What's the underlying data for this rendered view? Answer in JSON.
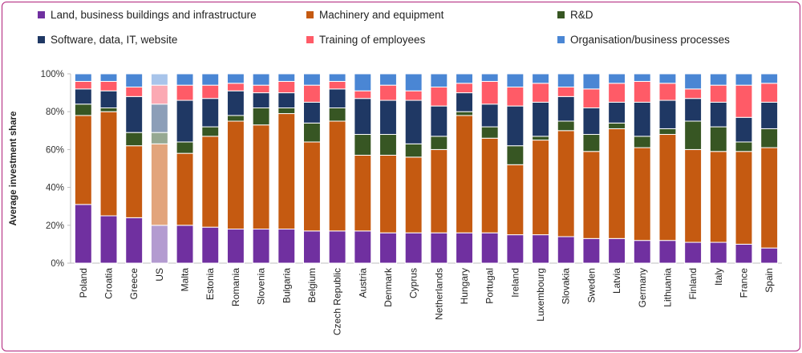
{
  "chart_data": {
    "type": "bar",
    "stacked": true,
    "ylabel": "Average investment share",
    "ylim": [
      0,
      100
    ],
    "yticks": [
      "0%",
      "20%",
      "40%",
      "60%",
      "80%",
      "100%"
    ],
    "legend": [
      {
        "name": "Land, business buildings and infrastructure",
        "color": "#7030A0"
      },
      {
        "name": "Machinery and equipment",
        "color": "#C55A11"
      },
      {
        "name": "R&D",
        "color": "#375623"
      },
      {
        "name": "Software, data, IT, website",
        "color": "#1F3864"
      },
      {
        "name": "Training of employees",
        "color": "#FF5B67"
      },
      {
        "name": "Organisation/business processes",
        "color": "#4A86D4"
      }
    ],
    "highlight": "US",
    "highlight_colors": [
      "#B39BD0",
      "#E2A47C",
      "#96A892",
      "#8C9EB8",
      "#FBA9B3",
      "#A8C4EA"
    ],
    "categories": [
      "Poland",
      "Croatia",
      "Greece",
      "US",
      "Malta",
      "Estonia",
      "Romania",
      "Slovenia",
      "Bulgaria",
      "Belgium",
      "Czech Republic",
      "Austria",
      "Denmark",
      "Cyprus",
      "Netherlands",
      "Hungary",
      "Portugal",
      "Ireland",
      "Luxembourg",
      "Slovakia",
      "Sweden",
      "Latvia",
      "Germany",
      "Lithuania",
      "Finland",
      "Italy",
      "France",
      "Spain"
    ],
    "series": [
      {
        "name": "Land, business buildings and infrastructure",
        "values": [
          31,
          25,
          24,
          20,
          20,
          19,
          18,
          18,
          18,
          17,
          17,
          17,
          16,
          16,
          16,
          16,
          16,
          15,
          15,
          14,
          13,
          13,
          12,
          12,
          11,
          11,
          10,
          8
        ]
      },
      {
        "name": "Machinery and equipment",
        "values": [
          47,
          55,
          38,
          43,
          38,
          48,
          57,
          55,
          61,
          47,
          58,
          40,
          41,
          40,
          44,
          62,
          50,
          37,
          50,
          56,
          46,
          58,
          49,
          56,
          49,
          48,
          49,
          53
        ]
      },
      {
        "name": "R&D",
        "values": [
          6,
          2,
          7,
          6,
          6,
          5,
          3,
          9,
          3,
          10,
          7,
          11,
          11,
          7,
          7,
          2,
          6,
          10,
          2,
          5,
          9,
          3,
          6,
          3,
          15,
          13,
          5,
          10
        ]
      },
      {
        "name": "Software, data, IT, website",
        "values": [
          8,
          9,
          19,
          15,
          22,
          15,
          13,
          8,
          8,
          11,
          10,
          19,
          18,
          23,
          16,
          10,
          12,
          21,
          18,
          13,
          14,
          11,
          18,
          15,
          12,
          13,
          13,
          14
        ]
      },
      {
        "name": "Training of employees",
        "values": [
          4,
          5,
          5,
          10,
          8,
          7,
          4,
          4,
          6,
          9,
          4,
          4,
          8,
          5,
          10,
          5,
          12,
          10,
          10,
          5,
          10,
          10,
          11,
          9,
          5,
          9,
          17,
          10
        ]
      },
      {
        "name": "Organisation/business processes",
        "values": [
          4,
          4,
          7,
          6,
          6,
          6,
          5,
          6,
          4,
          6,
          4,
          9,
          6,
          9,
          7,
          5,
          4,
          7,
          5,
          7,
          8,
          5,
          4,
          5,
          8,
          6,
          6,
          5
        ]
      }
    ]
  }
}
